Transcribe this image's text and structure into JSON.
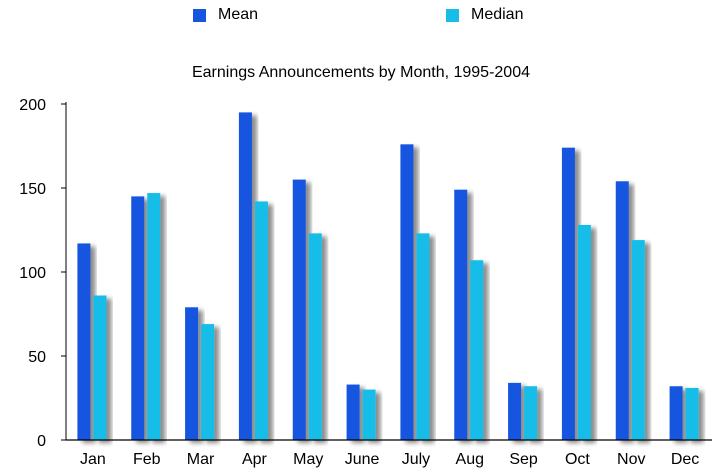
{
  "chart_data": {
    "type": "bar",
    "title": "Earnings Announcements by Month, 1995-2004",
    "xlabel": "",
    "ylabel": "",
    "categories": [
      "Jan",
      "Feb",
      "Mar",
      "Apr",
      "May",
      "June",
      "July",
      "Aug",
      "Sep",
      "Oct",
      "Nov",
      "Dec"
    ],
    "series": [
      {
        "name": "Mean",
        "color": "#1655e0",
        "values": [
          117,
          145,
          79,
          195,
          155,
          33,
          176,
          149,
          34,
          174,
          154,
          32
        ]
      },
      {
        "name": "Median",
        "color": "#17bde8",
        "values": [
          86,
          147,
          69,
          142,
          123,
          30,
          123,
          107,
          32,
          128,
          119,
          31
        ]
      }
    ],
    "ylim": [
      0,
      200
    ],
    "yticks": [
      "0",
      "50",
      "100",
      "150",
      "200"
    ],
    "grid": false,
    "legend_position": "top"
  }
}
